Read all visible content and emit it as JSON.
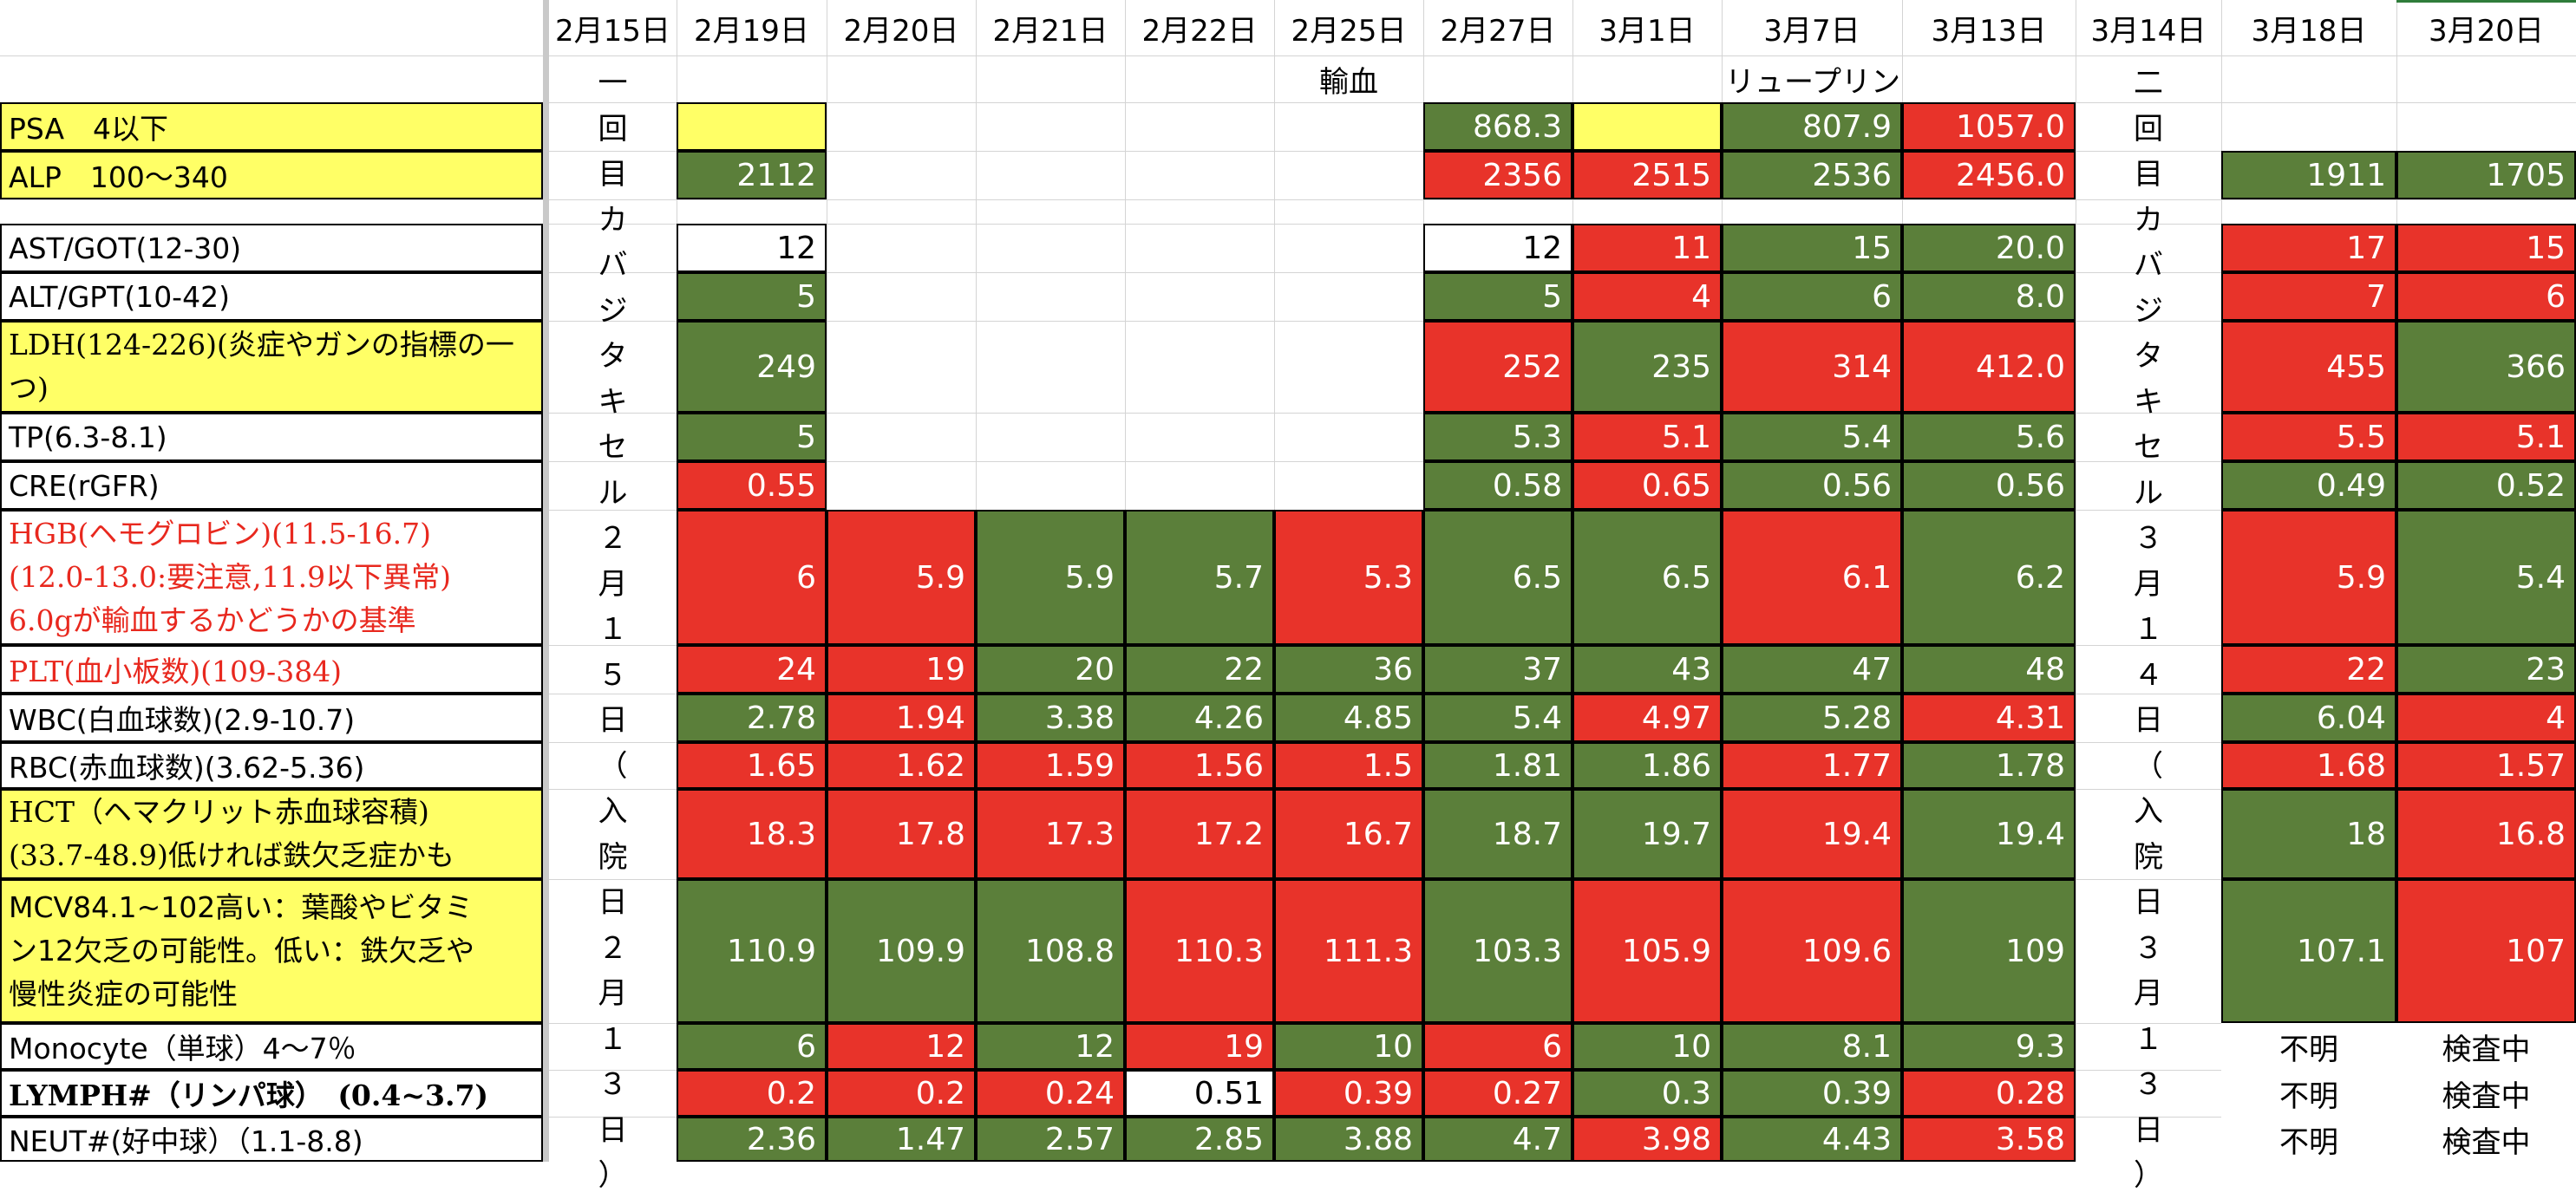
{
  "colors": {
    "green": "#5b7f3a",
    "red": "#e8332a",
    "yellow": "#ffff66",
    "white": "#ffffff"
  },
  "dates": [
    "2月15日",
    "2月19日",
    "2月20日",
    "2月21日",
    "2月22日",
    "2月25日",
    "2月27日",
    "3月1日",
    "3月7日",
    "3月13日",
    "3月14日",
    "3月18日",
    "3月20日"
  ],
  "notes": {
    "feb25": "輸血",
    "mar1": "リュープリン"
  },
  "vertical": {
    "first": [
      "一",
      "回",
      "目",
      "カ",
      "バ",
      "ジ",
      "タ",
      "キ",
      "セ",
      "ル",
      "２",
      "月",
      "１",
      "５",
      "日",
      "（",
      "入",
      "院",
      "日",
      "２",
      "月",
      "１",
      "３",
      "日",
      "）"
    ],
    "second": [
      "二",
      "回",
      "目",
      "カ",
      "バ",
      "ジ",
      "タ",
      "キ",
      "セ",
      "ル",
      "３",
      "月",
      "１",
      "４",
      "日",
      "（",
      "入",
      "院",
      "日",
      "３",
      "月",
      "１",
      "３",
      "日",
      "）"
    ]
  },
  "rows": [
    {
      "key": "psa",
      "label": "PSA　4以下",
      "bg": "yellow",
      "values": [
        "",
        "",
        "",
        "",
        "",
        "868.3",
        "",
        "807.9",
        "1057.0",
        "",
        ""
      ],
      "colors": [
        "yellow",
        "none",
        "none",
        "none",
        "none",
        "green",
        "yellow",
        "green",
        "red",
        "none",
        "none"
      ]
    },
    {
      "key": "alp",
      "label": "ALP　100〜340",
      "bg": "yellow",
      "values": [
        "2112",
        "",
        "",
        "",
        "",
        "2356",
        "2515",
        "2536",
        "2456.0",
        "1911",
        "1705"
      ],
      "colors": [
        "green",
        "none",
        "none",
        "none",
        "none",
        "red",
        "red",
        "green",
        "red",
        "green",
        "green"
      ]
    },
    {
      "key": "ast",
      "label": "AST/GOT(12-30)",
      "bg": "white",
      "values": [
        "12",
        "",
        "",
        "",
        "",
        "12",
        "11",
        "15",
        "20.0",
        "17",
        "15"
      ],
      "colors": [
        "white",
        "none",
        "none",
        "none",
        "none",
        "white",
        "red",
        "green",
        "green",
        "red",
        "red"
      ]
    },
    {
      "key": "alt",
      "label": "ALT/GPT(10-42)",
      "bg": "white",
      "values": [
        "5",
        "",
        "",
        "",
        "",
        "5",
        "4",
        "6",
        "8.0",
        "7",
        "6"
      ],
      "colors": [
        "green",
        "none",
        "none",
        "none",
        "none",
        "green",
        "red",
        "green",
        "green",
        "red",
        "red"
      ]
    },
    {
      "key": "ldh",
      "label": "LDH(124-226)(炎症やガンの指標の一つ)",
      "bg": "yellow",
      "values": [
        "249",
        "",
        "",
        "",
        "",
        "252",
        "235",
        "314",
        "412.0",
        "455",
        "366"
      ],
      "colors": [
        "green",
        "none",
        "none",
        "none",
        "none",
        "red",
        "green",
        "red",
        "red",
        "red",
        "green"
      ]
    },
    {
      "key": "tp",
      "label": "TP(6.3-8.1)",
      "bg": "white",
      "values": [
        "5",
        "",
        "",
        "",
        "",
        "5.3",
        "5.1",
        "5.4",
        "5.6",
        "5.5",
        "5.1"
      ],
      "colors": [
        "green",
        "none",
        "none",
        "none",
        "none",
        "green",
        "red",
        "green",
        "green",
        "red",
        "red"
      ]
    },
    {
      "key": "cre",
      "label": "CRE(rGFR)",
      "bg": "white",
      "values": [
        "0.55",
        "",
        "",
        "",
        "",
        "0.58",
        "0.65",
        "0.56",
        "0.56",
        "0.49",
        "0.52"
      ],
      "colors": [
        "red",
        "none",
        "none",
        "none",
        "none",
        "green",
        "red",
        "green",
        "green",
        "green",
        "green"
      ]
    },
    {
      "key": "hgb",
      "label": [
        "HGB(ヘモグロビン)(11.5-16.7)",
        "(12.0-13.0:要注意,11.9以下異常)",
        "6.0gが輸血するかどうかの基準"
      ],
      "bg": "white",
      "values": [
        "6",
        "5.9",
        "5.9",
        "5.7",
        "5.3",
        "6.5",
        "6.5",
        "6.1",
        "6.2",
        "5.9",
        "5.4"
      ],
      "colors": [
        "red",
        "red",
        "green",
        "green",
        "red",
        "green",
        "green",
        "red",
        "green",
        "red",
        "green"
      ]
    },
    {
      "key": "plt",
      "label": "PLT(血小板数)(109-384)",
      "bg": "white",
      "values": [
        "24",
        "19",
        "20",
        "22",
        "36",
        "37",
        "43",
        "47",
        "48",
        "22",
        "23"
      ],
      "colors": [
        "red",
        "red",
        "green",
        "green",
        "green",
        "green",
        "green",
        "green",
        "green",
        "red",
        "green"
      ]
    },
    {
      "key": "wbc",
      "label": "WBC(白血球数)(2.9-10.7)",
      "bg": "white",
      "values": [
        "2.78",
        "1.94",
        "3.38",
        "4.26",
        "4.85",
        "5.4",
        "4.97",
        "5.28",
        "4.31",
        "6.04",
        "4"
      ],
      "colors": [
        "green",
        "red",
        "green",
        "green",
        "green",
        "green",
        "red",
        "green",
        "red",
        "green",
        "red"
      ]
    },
    {
      "key": "rbc",
      "label": "RBC(赤血球数)(3.62-5.36)",
      "bg": "white",
      "values": [
        "1.65",
        "1.62",
        "1.59",
        "1.56",
        "1.5",
        "1.81",
        "1.86",
        "1.77",
        "1.78",
        "1.68",
        "1.57"
      ],
      "colors": [
        "red",
        "red",
        "red",
        "red",
        "red",
        "green",
        "green",
        "red",
        "green",
        "red",
        "red"
      ]
    },
    {
      "key": "hct",
      "label": [
        "HCT（ヘマクリット赤血球容積)",
        "(33.7-48.9)低ければ鉄欠乏症かも"
      ],
      "bg": "yellow",
      "values": [
        "18.3",
        "17.8",
        "17.3",
        "17.2",
        "16.7",
        "18.7",
        "19.7",
        "19.4",
        "19.4",
        "18",
        "16.8"
      ],
      "colors": [
        "red",
        "red",
        "red",
        "red",
        "red",
        "green",
        "green",
        "red",
        "green",
        "green",
        "red"
      ]
    },
    {
      "key": "mcv",
      "label": [
        "MCV84.1~102高い：葉酸やビタミ",
        "ン12欠乏の可能性。低い：鉄欠乏や",
        "慢性炎症の可能性"
      ],
      "bg": "yellow",
      "values": [
        "110.9",
        "109.9",
        "108.8",
        "110.3",
        "111.3",
        "103.3",
        "105.9",
        "109.6",
        "109",
        "107.1",
        "107"
      ],
      "colors": [
        "green",
        "green",
        "green",
        "red",
        "red",
        "green",
        "red",
        "red",
        "green",
        "green",
        "red"
      ]
    },
    {
      "key": "mono",
      "label": "Monocyte（単球）4〜7％",
      "bg": "white",
      "values": [
        "6",
        "12",
        "12",
        "19",
        "10",
        "6",
        "10",
        "8.1",
        "9.3",
        "不明",
        "検査中"
      ],
      "colors": [
        "green",
        "red",
        "green",
        "red",
        "green",
        "red",
        "green",
        "green",
        "green",
        "white",
        "white"
      ]
    },
    {
      "key": "lymph",
      "label": "LYMPH#（リンパ球）　(0.4~3.7)",
      "bg": "white",
      "values": [
        "0.2",
        "0.2",
        "0.24",
        "0.51",
        "0.39",
        "0.27",
        "0.3",
        "0.39",
        "0.28",
        "不明",
        "検査中"
      ],
      "colors": [
        "red",
        "red",
        "red",
        "white",
        "red",
        "red",
        "green",
        "green",
        "red",
        "white",
        "white"
      ]
    },
    {
      "key": "neut",
      "label": "NEUT#(好中球）（1.1-8.8)",
      "bg": "white",
      "values": [
        "2.36",
        "1.47",
        "2.57",
        "2.85",
        "3.88",
        "4.7",
        "3.98",
        "4.43",
        "3.58",
        "不明",
        "検査中"
      ],
      "colors": [
        "green",
        "green",
        "green",
        "green",
        "green",
        "green",
        "red",
        "green",
        "red",
        "white",
        "white"
      ]
    }
  ]
}
